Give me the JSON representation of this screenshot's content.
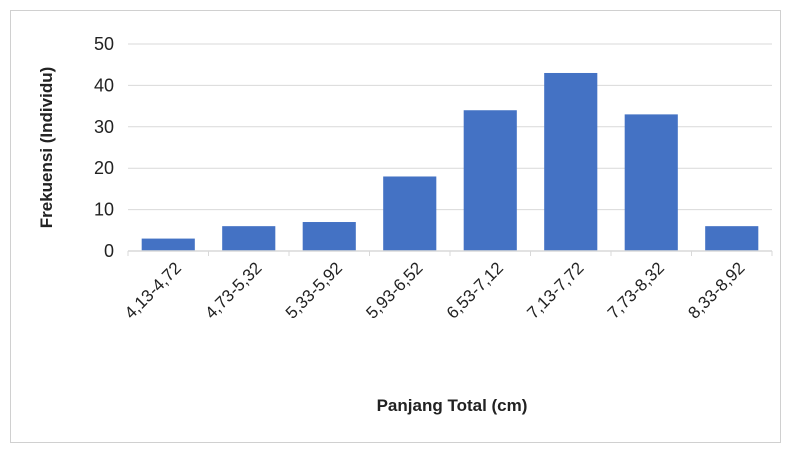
{
  "chart_data": {
    "type": "bar",
    "categories": [
      "4,13-4,72",
      "4,73-5,32",
      "5,33-5,92",
      "5,93-6,52",
      "6,53-7,12",
      "7,13-7,72",
      "7,73-8,32",
      "8,33-8,92"
    ],
    "values": [
      3,
      6,
      7,
      18,
      34,
      43,
      33,
      6
    ],
    "title": "",
    "xlabel": "Panjang Total (cm)",
    "ylabel": "Frekuensi (Individu)",
    "ylim": [
      0,
      50
    ],
    "yticks": [
      0,
      10,
      20,
      30,
      40,
      50
    ],
    "grid": true,
    "legend": "none",
    "bar_color": "#4472C4",
    "grid_color": "#d9d9d9"
  }
}
